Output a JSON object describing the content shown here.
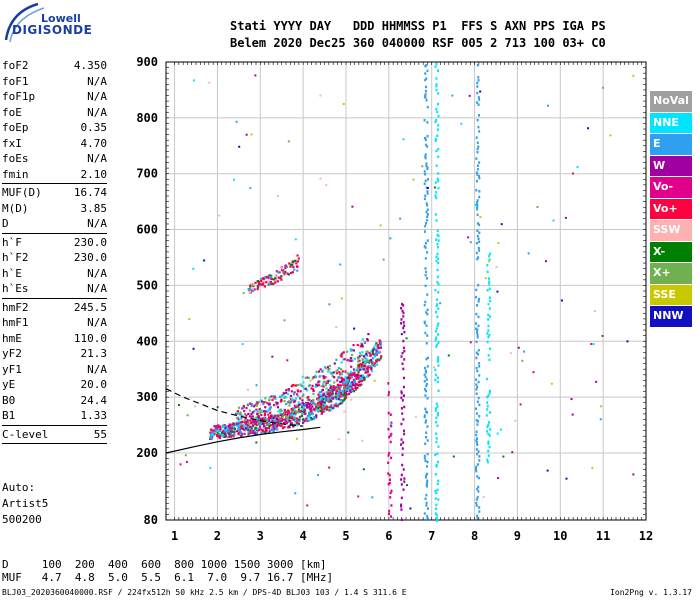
{
  "logo": {
    "line1": "Lowell",
    "line2": "DIGISONDE"
  },
  "header": {
    "row1": "Stati YYYY DAY   DDD HHMMSS P1  FFS S AXN PPS IGA PS",
    "row2": "Belem 2020 Dec25 360 040000 RSF 005 2 713 100 03+ C0"
  },
  "params": {
    "group1": [
      {
        "k": "foF2",
        "v": "4.350"
      },
      {
        "k": "foF1",
        "v": "N/A"
      },
      {
        "k": "foF1p",
        "v": "N/A"
      },
      {
        "k": "foE",
        "v": "N/A"
      },
      {
        "k": "foEp",
        "v": "0.35"
      },
      {
        "k": "fxI",
        "v": "4.70"
      },
      {
        "k": "foEs",
        "v": "N/A"
      },
      {
        "k": "fmin",
        "v": "2.10"
      }
    ],
    "group2": [
      {
        "k": "MUF(D)",
        "v": "16.74"
      },
      {
        "k": "M(D)",
        "v": "3.85"
      },
      {
        "k": "D",
        "v": "N/A"
      }
    ],
    "group3": [
      {
        "k": "h`F",
        "v": "230.0"
      },
      {
        "k": "h`F2",
        "v": "230.0"
      },
      {
        "k": "h`E",
        "v": "N/A"
      },
      {
        "k": "h`Es",
        "v": "N/A"
      }
    ],
    "group4": [
      {
        "k": "hmF2",
        "v": "245.5"
      },
      {
        "k": "hmF1",
        "v": "N/A"
      },
      {
        "k": "hmE",
        "v": "110.0"
      },
      {
        "k": "yF2",
        "v": "21.3"
      },
      {
        "k": "yF1",
        "v": "N/A"
      },
      {
        "k": "yE",
        "v": "20.0"
      },
      {
        "k": "B0",
        "v": "24.4"
      },
      {
        "k": "B1",
        "v": "1.33"
      }
    ],
    "group5": [
      {
        "k": "C-level",
        "v": "55"
      }
    ]
  },
  "auto": {
    "line1": "Auto:",
    "line2": "Artist5",
    "line3": "500200"
  },
  "legend": [
    {
      "label": "NoVal",
      "color": "#a0a0a0"
    },
    {
      "label": "NNE",
      "color": "#00e5ff"
    },
    {
      "label": "E",
      "color": "#2fa0f0"
    },
    {
      "label": "W",
      "color": "#a000a0"
    },
    {
      "label": "Vo-",
      "color": "#e0008c"
    },
    {
      "label": "Vo+",
      "color": "#ff0040"
    },
    {
      "label": "SSW",
      "color": "#ffb0b0"
    },
    {
      "label": "X-",
      "color": "#008000"
    },
    {
      "label": "X+",
      "color": "#70b050"
    },
    {
      "label": "SSE",
      "color": "#c8c800"
    },
    {
      "label": "NNW",
      "color": "#1010c0"
    }
  ],
  "dtable": {
    "row1": "D     100  200  400  600  800 1000 1500 3000 [km]",
    "row2": "MUF   4.7  4.8  5.0  5.5  6.1  7.0  9.7 16.7 [MHz]"
  },
  "footer": "BLJ03_2020360040000.RSF / 224fx512h 50 kHz 2.5 km / DPS-4D BLJ03 103 / 1.4 S 311.6 E",
  "version": "Ion2Png v. 1.3.17",
  "chart_data": {
    "type": "scatter",
    "xlim": [
      0.8,
      12.0
    ],
    "ylim": [
      80,
      900
    ],
    "xticks": [
      1,
      2,
      3,
      4,
      5,
      6,
      7,
      8,
      9,
      10,
      11,
      12
    ],
    "yticks": [
      80,
      200,
      300,
      400,
      500,
      600,
      700,
      800,
      900
    ],
    "grid": true,
    "trace_o": [
      [
        1.8,
        238
      ],
      [
        2.0,
        240
      ],
      [
        2.2,
        242
      ],
      [
        2.5,
        245
      ],
      [
        2.8,
        248
      ],
      [
        3.0,
        250
      ],
      [
        3.3,
        255
      ],
      [
        3.6,
        262
      ],
      [
        3.9,
        270
      ],
      [
        4.2,
        280
      ],
      [
        4.5,
        292
      ],
      [
        4.8,
        305
      ],
      [
        5.0,
        320
      ],
      [
        5.2,
        335
      ],
      [
        5.4,
        350
      ],
      [
        5.6,
        370
      ],
      [
        5.8,
        390
      ]
    ],
    "trace_x": [
      [
        2.4,
        265
      ],
      [
        2.8,
        270
      ],
      [
        3.2,
        278
      ],
      [
        3.6,
        290
      ],
      [
        4.0,
        305
      ],
      [
        4.4,
        320
      ],
      [
        4.8,
        340
      ],
      [
        5.2,
        360
      ],
      [
        5.5,
        380
      ]
    ],
    "trace_ss": [
      [
        2.7,
        495
      ],
      [
        3.0,
        505
      ],
      [
        3.3,
        515
      ],
      [
        3.6,
        530
      ],
      [
        3.9,
        545
      ]
    ],
    "solid_curve": [
      [
        0.8,
        200
      ],
      [
        1.5,
        212
      ],
      [
        2.0,
        220
      ],
      [
        2.5,
        227
      ],
      [
        3.0,
        233
      ],
      [
        3.5,
        238
      ],
      [
        4.0,
        242
      ],
      [
        4.4,
        246
      ]
    ],
    "dashed_curve": [
      [
        0.8,
        315
      ],
      [
        1.2,
        300
      ],
      [
        1.6,
        288
      ],
      [
        2.0,
        276
      ],
      [
        2.5,
        266
      ],
      [
        3.0,
        258
      ],
      [
        3.5,
        252
      ],
      [
        4.0,
        248
      ]
    ],
    "vertical_streaks": [
      {
        "x": 6.85,
        "y0": 80,
        "y1": 900,
        "series": "E"
      },
      {
        "x": 7.1,
        "y0": 80,
        "y1": 900,
        "series": "NNE"
      },
      {
        "x": 8.05,
        "y0": 80,
        "y1": 900,
        "series": "E"
      },
      {
        "x": 6.0,
        "y0": 80,
        "y1": 330,
        "series": "Vo-"
      },
      {
        "x": 6.3,
        "y0": 80,
        "y1": 480,
        "series": "W"
      },
      {
        "x": 8.3,
        "y0": 180,
        "y1": 560,
        "series": "NNE"
      }
    ]
  }
}
